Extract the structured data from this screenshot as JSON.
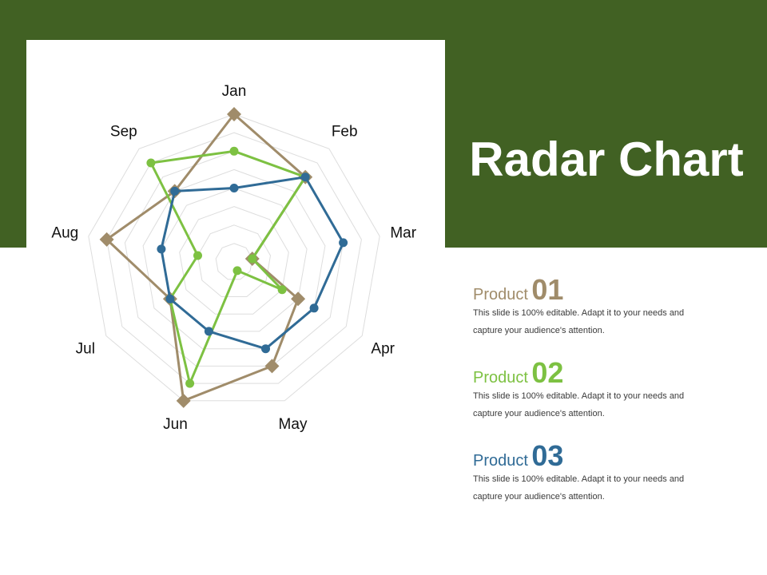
{
  "title": "Radar Chart",
  "colors": {
    "banner": "#416123",
    "product1": "#a08c6a",
    "product2": "#7dc142",
    "product3": "#306b96",
    "grid": "#dddddd"
  },
  "legend": [
    {
      "word": "Product",
      "number": "01",
      "color": "#a08c6a",
      "text": "This slide is 100% editable. Adapt it to your needs and capture your audience's attention."
    },
    {
      "word": "Product",
      "number": "02",
      "color": "#7dc142",
      "text": "This slide is 100% editable. Adapt it to your needs and capture your audience's attention."
    },
    {
      "word": "Product",
      "number": "03",
      "color": "#306b96",
      "text": "This slide is 100% editable. Adapt it to your needs and capture your audience's attention."
    }
  ],
  "chart_data": {
    "type": "radar",
    "categories": [
      "Jan",
      "Feb",
      "Mar",
      "Apr",
      "May",
      "Jun",
      "Jul",
      "Aug",
      "Sep"
    ],
    "rmax": 8,
    "grid_levels": 8,
    "series": [
      {
        "name": "Product 01",
        "marker": "diamond",
        "color": "#a08c6a",
        "values": [
          8,
          6,
          1,
          4,
          6,
          8,
          4,
          7,
          5
        ]
      },
      {
        "name": "Product 02",
        "marker": "circle",
        "color": "#7dc142",
        "values": [
          6,
          6,
          1,
          3,
          0.5,
          7,
          4,
          2,
          7
        ]
      },
      {
        "name": "Product 03",
        "marker": "circle",
        "color": "#306b96",
        "values": [
          4,
          6,
          6,
          5,
          5,
          4,
          4,
          4,
          5
        ]
      }
    ]
  }
}
